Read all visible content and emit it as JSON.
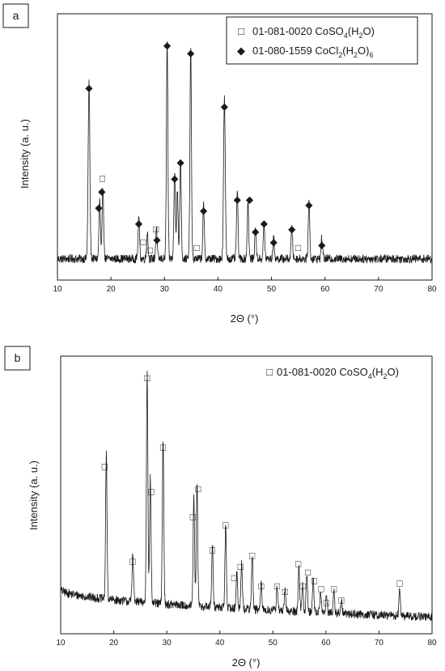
{
  "chart_data": [
    {
      "panel": "a",
      "type": "line",
      "xlabel": "2Θ (°)",
      "ylabel": "Intensity (a. u.)",
      "xlim": [
        10,
        80
      ],
      "ylim": [
        0,
        100
      ],
      "xticks": [
        10,
        20,
        30,
        40,
        50,
        60,
        70,
        80
      ],
      "legend_position": "top-right",
      "legend": [
        {
          "marker": "□",
          "prefix": "01-081-0020 CoSO",
          "sub1": "4",
          "mid": "(H",
          "sub2": "2",
          "suffix": "O)"
        },
        {
          "marker": "◆",
          "prefix": "01-080-1559 CoCl",
          "sub1": "2",
          "mid": "(H",
          "sub2": "2",
          "suffix": "O)",
          "sub3": "6"
        }
      ],
      "baseline": 8,
      "peaks": [
        {
          "x": 15.9,
          "y": 66,
          "w": 0.35
        },
        {
          "x": 17.9,
          "y": 22,
          "w": 0.3
        },
        {
          "x": 18.5,
          "y": 27,
          "w": 0.3
        },
        {
          "x": 25.2,
          "y": 16,
          "w": 0.3
        },
        {
          "x": 26.8,
          "y": 10,
          "w": 0.3
        },
        {
          "x": 28.5,
          "y": 12,
          "w": 0.3
        },
        {
          "x": 30.5,
          "y": 82,
          "w": 0.3
        },
        {
          "x": 31.9,
          "y": 33,
          "w": 0.3
        },
        {
          "x": 32.4,
          "y": 26,
          "w": 0.3
        },
        {
          "x": 33.0,
          "y": 38,
          "w": 0.3
        },
        {
          "x": 34.9,
          "y": 80,
          "w": 0.3
        },
        {
          "x": 37.3,
          "y": 20,
          "w": 0.3
        },
        {
          "x": 41.2,
          "y": 60,
          "w": 0.35
        },
        {
          "x": 43.6,
          "y": 25,
          "w": 0.3
        },
        {
          "x": 45.6,
          "y": 22,
          "w": 0.3
        },
        {
          "x": 47.0,
          "y": 12,
          "w": 0.3
        },
        {
          "x": 48.6,
          "y": 13,
          "w": 0.3
        },
        {
          "x": 50.4,
          "y": 8,
          "w": 0.3
        },
        {
          "x": 53.8,
          "y": 12,
          "w": 0.3
        },
        {
          "x": 57.0,
          "y": 22,
          "w": 0.3
        },
        {
          "x": 59.4,
          "y": 8,
          "w": 0.3
        }
      ],
      "markers": [
        {
          "x": 15.9,
          "y": 71,
          "m": "◆"
        },
        {
          "x": 17.7,
          "y": 26,
          "m": "◆"
        },
        {
          "x": 18.3,
          "y": 32,
          "m": "◆"
        },
        {
          "x": 18.4,
          "y": 37,
          "m": "□"
        },
        {
          "x": 25.2,
          "y": 20,
          "m": "◆"
        },
        {
          "x": 26.0,
          "y": 13,
          "m": "□"
        },
        {
          "x": 27.3,
          "y": 10,
          "m": "□"
        },
        {
          "x": 28.4,
          "y": 18,
          "m": "□"
        },
        {
          "x": 28.6,
          "y": 14,
          "m": "◆"
        },
        {
          "x": 30.5,
          "y": 87,
          "m": "◆"
        },
        {
          "x": 31.9,
          "y": 37,
          "m": "◆"
        },
        {
          "x": 33.0,
          "y": 43,
          "m": "◆"
        },
        {
          "x": 34.9,
          "y": 84,
          "m": "◆"
        },
        {
          "x": 36.0,
          "y": 11,
          "m": "□"
        },
        {
          "x": 37.3,
          "y": 25,
          "m": "◆"
        },
        {
          "x": 41.2,
          "y": 64,
          "m": "◆"
        },
        {
          "x": 43.6,
          "y": 29,
          "m": "◆"
        },
        {
          "x": 45.9,
          "y": 29,
          "m": "◆"
        },
        {
          "x": 47.0,
          "y": 17,
          "m": "◆"
        },
        {
          "x": 48.6,
          "y": 20,
          "m": "◆"
        },
        {
          "x": 50.4,
          "y": 13,
          "m": "◆"
        },
        {
          "x": 53.8,
          "y": 18,
          "m": "◆"
        },
        {
          "x": 55.0,
          "y": 11,
          "m": "□"
        },
        {
          "x": 57.0,
          "y": 27,
          "m": "◆"
        },
        {
          "x": 59.4,
          "y": 12,
          "m": "◆"
        }
      ]
    },
    {
      "panel": "b",
      "type": "line",
      "xlabel": "2Θ (°)",
      "ylabel": "Intensity (a. u.)",
      "xlim": [
        10,
        80
      ],
      "ylim": [
        0,
        100
      ],
      "xticks": [
        10,
        20,
        30,
        40,
        50,
        60,
        70,
        80
      ],
      "legend_position": "top-right",
      "legend": [
        {
          "marker": "□",
          "prefix": "01-081-0020 CoSO",
          "sub1": "4",
          "mid": "(H",
          "sub2": "2",
          "suffix": "O)"
        }
      ],
      "baseline_start": 16,
      "baseline_end": 6,
      "peaks": [
        {
          "x": 18.6,
          "y": 52,
          "w": 0.3
        },
        {
          "x": 23.6,
          "y": 18,
          "w": 0.3
        },
        {
          "x": 26.3,
          "y": 84,
          "w": 0.3
        },
        {
          "x": 26.9,
          "y": 45,
          "w": 0.3
        },
        {
          "x": 29.3,
          "y": 60,
          "w": 0.3
        },
        {
          "x": 35.1,
          "y": 39,
          "w": 0.3
        },
        {
          "x": 35.7,
          "y": 45,
          "w": 0.3
        },
        {
          "x": 38.6,
          "y": 23,
          "w": 0.3
        },
        {
          "x": 41.1,
          "y": 30,
          "w": 0.3
        },
        {
          "x": 43.2,
          "y": 13,
          "w": 0.3
        },
        {
          "x": 44.1,
          "y": 17,
          "w": 0.3
        },
        {
          "x": 46.1,
          "y": 20,
          "w": 0.3
        },
        {
          "x": 47.8,
          "y": 9,
          "w": 0.3
        },
        {
          "x": 50.8,
          "y": 9,
          "w": 0.3
        },
        {
          "x": 52.3,
          "y": 7,
          "w": 0.3
        },
        {
          "x": 54.9,
          "y": 16,
          "w": 0.3
        },
        {
          "x": 55.6,
          "y": 10,
          "w": 0.3
        },
        {
          "x": 56.4,
          "y": 13,
          "w": 0.3
        },
        {
          "x": 57.6,
          "y": 12,
          "w": 0.3
        },
        {
          "x": 59.0,
          "y": 8,
          "w": 0.3
        },
        {
          "x": 60.1,
          "y": 6,
          "w": 0.3
        },
        {
          "x": 61.5,
          "y": 8,
          "w": 0.3
        },
        {
          "x": 62.9,
          "y": 5,
          "w": 0.3
        },
        {
          "x": 73.9,
          "y": 9,
          "w": 0.3
        }
      ],
      "markers": [
        {
          "x": 18.3,
          "y": 59,
          "m": "□"
        },
        {
          "x": 23.6,
          "y": 25,
          "m": "□"
        },
        {
          "x": 26.3,
          "y": 91,
          "m": "□"
        },
        {
          "x": 27.1,
          "y": 50,
          "m": "□"
        },
        {
          "x": 29.3,
          "y": 66,
          "m": "□"
        },
        {
          "x": 34.9,
          "y": 41,
          "m": "□"
        },
        {
          "x": 35.9,
          "y": 51,
          "m": "□"
        },
        {
          "x": 38.6,
          "y": 29,
          "m": "□"
        },
        {
          "x": 41.1,
          "y": 38,
          "m": "□"
        },
        {
          "x": 42.7,
          "y": 19,
          "m": "□"
        },
        {
          "x": 43.9,
          "y": 23,
          "m": "□"
        },
        {
          "x": 46.1,
          "y": 27,
          "m": "□"
        },
        {
          "x": 47.8,
          "y": 16,
          "m": "□"
        },
        {
          "x": 50.8,
          "y": 16,
          "m": "□"
        },
        {
          "x": 52.3,
          "y": 14,
          "m": "□"
        },
        {
          "x": 54.8,
          "y": 24,
          "m": "□"
        },
        {
          "x": 55.6,
          "y": 16,
          "m": "□"
        },
        {
          "x": 56.6,
          "y": 21,
          "m": "□"
        },
        {
          "x": 57.8,
          "y": 18,
          "m": "□"
        },
        {
          "x": 59.1,
          "y": 15,
          "m": "□"
        },
        {
          "x": 60.1,
          "y": 10,
          "m": "□"
        },
        {
          "x": 61.5,
          "y": 15,
          "m": "□"
        },
        {
          "x": 62.9,
          "y": 11,
          "m": "□"
        },
        {
          "x": 73.9,
          "y": 17,
          "m": "□"
        }
      ]
    }
  ]
}
